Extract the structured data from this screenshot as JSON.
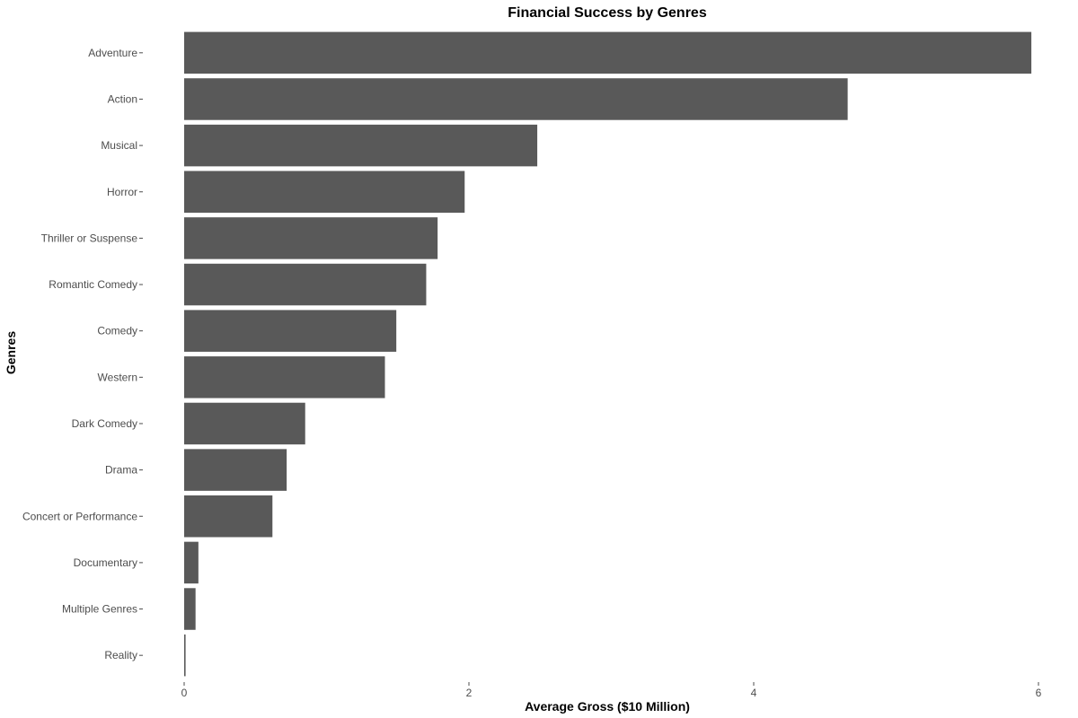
{
  "chart_data": {
    "type": "bar",
    "orientation": "horizontal",
    "title": "Financial Success by Genres",
    "xlabel": "Average Gross ($10 Million)",
    "ylabel": "Genres",
    "categories": [
      "Adventure",
      "Action",
      "Musical",
      "Horror",
      "Thriller or Suspense",
      "Romantic Comedy",
      "Comedy",
      "Western",
      "Dark Comedy",
      "Drama",
      "Concert or Performance",
      "Documentary",
      "Multiple Genres",
      "Reality"
    ],
    "values": [
      5.95,
      4.66,
      2.48,
      1.97,
      1.78,
      1.7,
      1.49,
      1.41,
      0.85,
      0.72,
      0.62,
      0.1,
      0.08,
      0.01
    ],
    "xlim": [
      0,
      6
    ],
    "xticks": [
      0,
      2,
      4,
      6
    ],
    "grid": false,
    "legend": "none",
    "bar_color": "#595959"
  }
}
